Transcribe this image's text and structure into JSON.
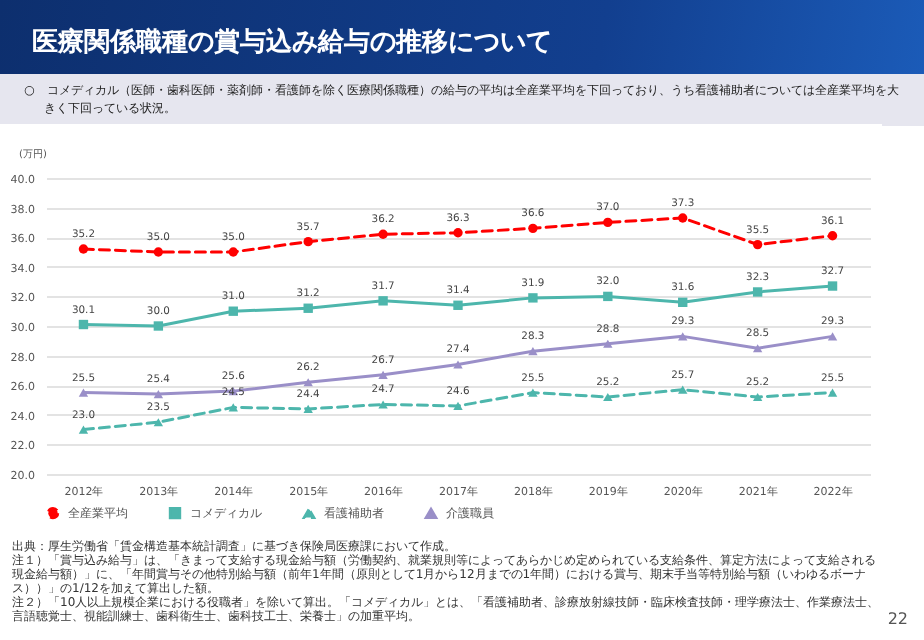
{
  "chart_data": {
    "type": "line",
    "title": "医療関係職種の賞与込み給与の推移について",
    "subtitle": "○　コメディカル（医師・歯科医師・薬剤師・看護師を除く医療関係職種）の給与の平均は全産業平均を下回っており、うち看護補助者については全産業平均を大きく下回っている状況。",
    "ylabel": "(万円)",
    "categories": [
      "2012年",
      "2013年",
      "2014年",
      "2015年",
      "2016年",
      "2017年",
      "2018年",
      "2019年",
      "2020年",
      "2021年",
      "2022年"
    ],
    "series": [
      {
        "name": "全産業平均",
        "color": "#ff0000",
        "marker": "circle",
        "line_style": "dashed",
        "values": [
          35.2,
          35.0,
          35.0,
          35.7,
          36.2,
          36.3,
          36.6,
          37.0,
          37.3,
          35.5,
          36.1
        ],
        "value_labels": [
          "35.2",
          "35.0",
          "35.0",
          "35.7",
          "36.2",
          "36.3",
          "36.6",
          "37.0",
          "37.3",
          "35.5",
          "36.1"
        ]
      },
      {
        "name": "コメディカル",
        "color": "#4db6ac",
        "marker": "square",
        "line_style": "solid",
        "values": [
          30.1,
          30.0,
          31.0,
          31.2,
          31.7,
          31.4,
          31.9,
          32.0,
          31.6,
          32.3,
          32.7
        ],
        "value_labels": [
          "30.1",
          "30.0",
          "31.0",
          "31.2",
          "31.7",
          "31.4",
          "31.9",
          "32.0",
          "31.6",
          "32.3",
          "32.7"
        ]
      },
      {
        "name": "看護補助者",
        "color": "#4db6ac",
        "marker": "triangle",
        "line_style": "dashed",
        "values": [
          23.0,
          23.5,
          24.5,
          24.4,
          24.7,
          24.6,
          25.5,
          25.2,
          25.7,
          25.2,
          25.5
        ],
        "value_labels": [
          "23.0",
          "23.5",
          "24.5",
          "24.4",
          "24.7",
          "24.6",
          "25.5",
          "25.2",
          "25.7",
          "25.2",
          "25.5"
        ]
      },
      {
        "name": "介護職員",
        "color": "#9a8fc8",
        "marker": "triangle",
        "line_style": "solid",
        "values": [
          25.5,
          25.4,
          25.6,
          26.2,
          26.7,
          27.4,
          28.3,
          28.8,
          29.3,
          28.5,
          29.3
        ],
        "value_labels": [
          "25.5",
          "25.4",
          "25.6",
          "26.2",
          "26.7",
          "27.4",
          "28.3",
          "28.8",
          "29.3",
          "28.5",
          "29.3"
        ]
      }
    ],
    "ylim": [
      20,
      40
    ],
    "yticks": [
      {
        "value": 20,
        "label": "20.0"
      },
      {
        "value": 22,
        "label": "22.0"
      },
      {
        "value": 24,
        "label": "24.0"
      },
      {
        "value": 26,
        "label": "26.0"
      },
      {
        "value": 28,
        "label": "28.0"
      },
      {
        "value": 30,
        "label": "30.0"
      },
      {
        "value": 32,
        "label": "32.0"
      },
      {
        "value": 34,
        "label": "34.0"
      },
      {
        "value": 36,
        "label": "36.0"
      },
      {
        "value": 38,
        "label": "38.0"
      },
      {
        "value": 40,
        "label": "40.0"
      }
    ],
    "grid": "y",
    "legend": "bottom",
    "annotations": [
      "出典：厚生労働省「賃金構造基本統計調査」に基づき保険局医療課において作成。",
      "注１）「賞与込み給与」は、「きまって支給する現金給与額（労働契約、就業規則等によってあらかじめ定められている支給条件、算定方法によって支給される現金給与額）」に、「年間賞与その他特別給与額（前年1年間（原則として1月から12月までの1年間）における賞与、期末手当等特別給与額（いわゆるボーナス））」の1/12を加えて算出した額。",
      "注２）「10人以上規模企業における役職者」を除いて算出。「コメディカル」とは、「看護補助者、診療放射線技師・臨床検査技師・理学療法士、作業療法士、言語聴覚士、視能訓練士、歯科衛生士、歯科技工士、栄養士」の加重平均。",
      "22"
    ]
  }
}
